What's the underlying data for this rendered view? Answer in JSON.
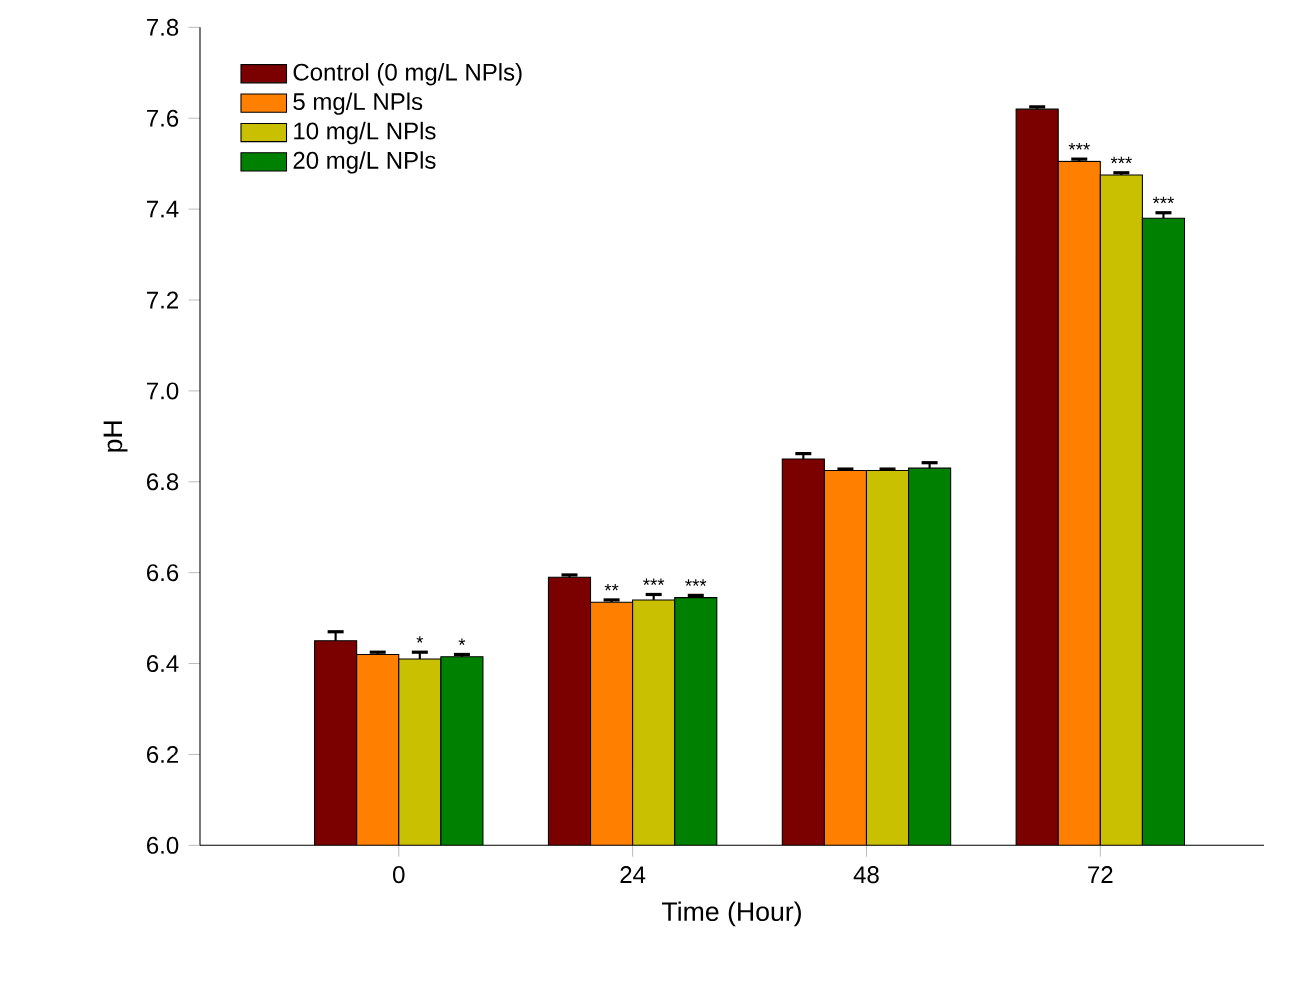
{
  "chart_data": {
    "type": "bar",
    "xlabel": "Time (Hour)",
    "ylabel": "pH",
    "categories": [
      "0",
      "24",
      "48",
      "72"
    ],
    "ylim": [
      6.0,
      7.8
    ],
    "yticks": [
      {
        "value": 6.0,
        "label": "6.0"
      },
      6.2,
      6.4,
      6.6,
      6.8,
      {
        "value": 7.0,
        "label": "7.0"
      },
      7.2,
      7.4,
      7.6,
      7.8
    ],
    "legend": "top left",
    "grid": false,
    "series": [
      {
        "name": "Control (0 mg/L NPls)",
        "color": "#7b0000",
        "values": [
          6.45,
          6.59,
          6.85,
          7.62
        ],
        "errors": [
          0.02,
          0.005,
          0.012,
          0.005
        ],
        "value_labels": [
          null,
          null,
          null,
          null
        ]
      },
      {
        "name": "5 mg/L NPls",
        "color": "#ff8000",
        "values": [
          6.42,
          6.535,
          6.825,
          7.505
        ],
        "errors": [
          0.005,
          0.005,
          0.003,
          0.005
        ],
        "value_labels": [
          null,
          "**",
          null,
          "***"
        ]
      },
      {
        "name": "10 mg/L NPls",
        "color": "#c8c000",
        "values": [
          6.41,
          6.54,
          6.825,
          7.475
        ],
        "errors": [
          0.015,
          0.012,
          0.003,
          0.005
        ],
        "value_labels": [
          "*",
          "***",
          null,
          "***"
        ]
      },
      {
        "name": "20 mg/L NPls",
        "color": "#008000",
        "values": [
          6.415,
          6.545,
          6.83,
          7.38
        ],
        "errors": [
          0.005,
          0.005,
          0.012,
          0.012
        ],
        "value_labels": [
          "*",
          "***",
          null,
          "***"
        ]
      }
    ]
  }
}
